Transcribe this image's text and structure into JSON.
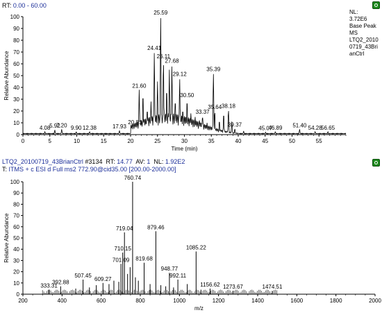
{
  "top_panel": {
    "range_key": "RT:",
    "range_value": "0.00 - 60.00",
    "side_info": [
      "NL:",
      "3.72E6",
      "Base Peak",
      "MS",
      "LTQ2_2010",
      "0719_43Bri",
      "anCtrl"
    ]
  },
  "bottom_panel": {
    "line1": [
      {
        "text": "LTQ2_20100719_43BrianCtrl",
        "color": "#1c2f9a"
      },
      {
        "text": " #3134  RT: ",
        "color": "#000000"
      },
      {
        "text": "14.77",
        "color": "#1c2f9a"
      },
      {
        "text": "  AV: ",
        "color": "#000000"
      },
      {
        "text": "1",
        "color": "#1c2f9a"
      },
      {
        "text": "  NL: ",
        "color": "#000000"
      },
      {
        "text": "1.92E2",
        "color": "#1c2f9a"
      }
    ],
    "line2": [
      {
        "text": "T: ",
        "color": "#000000"
      },
      {
        "text": "ITMS + c ESI d Full ms2 772.90@cid35.00 [200.00-2000.00]",
        "color": "#1c2f9a"
      }
    ]
  },
  "colors": {
    "trace": "#000000",
    "label_link": "#3aa63a",
    "text_blue": "#1c2f9a",
    "button": "#1c8a1c"
  },
  "icons": [
    "restore-pane-icon",
    "restore-pane-icon"
  ],
  "chart_data": [
    {
      "type": "line",
      "xlabel": "Time (min)",
      "ylabel": "Relative Abundance",
      "xlim": [
        0,
        60
      ],
      "ylim": [
        0,
        100
      ],
      "x_ticks": [
        0,
        5,
        10,
        15,
        20,
        25,
        30,
        35,
        40,
        45,
        50,
        55
      ],
      "y_ticks": [
        0,
        10,
        20,
        30,
        40,
        50,
        60,
        70,
        80,
        90,
        100
      ],
      "peaks": [
        {
          "x": 4.08,
          "y": 2.5,
          "label": "4.08"
        },
        {
          "x": 5.92,
          "y": 4,
          "label": "5.92"
        },
        {
          "x": 7.2,
          "y": 4.5,
          "label": "7.20"
        },
        {
          "x": 9.9,
          "y": 2.5,
          "label": "9.90"
        },
        {
          "x": 12.38,
          "y": 2.5,
          "label": "12.38"
        },
        {
          "x": 17.93,
          "y": 3.5,
          "label": "17.93"
        },
        {
          "x": 20.81,
          "y": 7,
          "label": "20.81"
        },
        {
          "x": 21.6,
          "y": 38,
          "label": "21.60"
        },
        {
          "x": 22.3,
          "y": 35
        },
        {
          "x": 23.1,
          "y": 22
        },
        {
          "x": 23.8,
          "y": 28
        },
        {
          "x": 24.41,
          "y": 70,
          "label": "24.41"
        },
        {
          "x": 25.0,
          "y": 45
        },
        {
          "x": 25.59,
          "y": 100,
          "label": "25.59"
        },
        {
          "x": 26.11,
          "y": 63,
          "label": "26.11"
        },
        {
          "x": 26.7,
          "y": 40
        },
        {
          "x": 27.2,
          "y": 55
        },
        {
          "x": 27.68,
          "y": 59,
          "label": "27.68"
        },
        {
          "x": 28.3,
          "y": 30
        },
        {
          "x": 29.12,
          "y": 48,
          "label": "29.12"
        },
        {
          "x": 29.7,
          "y": 22
        },
        {
          "x": 30.5,
          "y": 30,
          "label": "30.50"
        },
        {
          "x": 31.2,
          "y": 18
        },
        {
          "x": 32.0,
          "y": 15
        },
        {
          "x": 32.8,
          "y": 12
        },
        {
          "x": 33.37,
          "y": 16,
          "label": "33.37"
        },
        {
          "x": 34.2,
          "y": 10
        },
        {
          "x": 35.39,
          "y": 52,
          "label": "35.39"
        },
        {
          "x": 35.64,
          "y": 20,
          "label": "35.64"
        },
        {
          "x": 36.5,
          "y": 12
        },
        {
          "x": 37.3,
          "y": 18
        },
        {
          "x": 38.18,
          "y": 21,
          "label": "38.18"
        },
        {
          "x": 38.8,
          "y": 11
        },
        {
          "x": 39.37,
          "y": 5,
          "label": "39.37"
        },
        {
          "x": 41.0,
          "y": 3
        },
        {
          "x": 45.07,
          "y": 2,
          "label": "45.07"
        },
        {
          "x": 46.89,
          "y": 2.5,
          "label": "46.89"
        },
        {
          "x": 51.4,
          "y": 4.5,
          "label": "51.40"
        },
        {
          "x": 54.28,
          "y": 2.5,
          "label": "54.28"
        },
        {
          "x": 56.65,
          "y": 2.5,
          "label": "56.65"
        }
      ]
    },
    {
      "type": "bar",
      "xlabel": "m/z",
      "ylabel": "Relative Abundance",
      "xlim": [
        200,
        2000
      ],
      "ylim": [
        0,
        100
      ],
      "x_ticks": [
        200,
        400,
        600,
        800,
        1000,
        1200,
        1400,
        1600,
        1800,
        2000
      ],
      "y_ticks": [
        0,
        10,
        20,
        30,
        40,
        50,
        60,
        70,
        80,
        90,
        100
      ],
      "peaks": [
        {
          "x": 333.31,
          "y": 4,
          "label": "333.31"
        },
        {
          "x": 392.88,
          "y": 7,
          "label": "392.88"
        },
        {
          "x": 470,
          "y": 5
        },
        {
          "x": 507.45,
          "y": 13,
          "label": "507.45"
        },
        {
          "x": 540,
          "y": 6
        },
        {
          "x": 575,
          "y": 8
        },
        {
          "x": 609.27,
          "y": 10,
          "label": "609.27"
        },
        {
          "x": 640,
          "y": 9
        },
        {
          "x": 665,
          "y": 12
        },
        {
          "x": 690,
          "y": 11
        },
        {
          "x": 701.09,
          "y": 27,
          "label": "701.09"
        },
        {
          "x": 710.15,
          "y": 37,
          "label": "710.15"
        },
        {
          "x": 719.04,
          "y": 55,
          "label": "719.04"
        },
        {
          "x": 735,
          "y": 18
        },
        {
          "x": 748,
          "y": 24
        },
        {
          "x": 760.74,
          "y": 100,
          "label": "760.74"
        },
        {
          "x": 775,
          "y": 15
        },
        {
          "x": 790,
          "y": 12
        },
        {
          "x": 819.68,
          "y": 28,
          "label": "819.68"
        },
        {
          "x": 850,
          "y": 9
        },
        {
          "x": 879.46,
          "y": 56,
          "label": "879.46"
        },
        {
          "x": 905,
          "y": 8
        },
        {
          "x": 930,
          "y": 7
        },
        {
          "x": 948.77,
          "y": 19,
          "label": "948.77"
        },
        {
          "x": 970,
          "y": 6
        },
        {
          "x": 992.11,
          "y": 13,
          "label": "992.11"
        },
        {
          "x": 1040,
          "y": 9
        },
        {
          "x": 1085.22,
          "y": 38,
          "label": "1085.22"
        },
        {
          "x": 1110,
          "y": 4
        },
        {
          "x": 1156.62,
          "y": 5,
          "label": "1156.62"
        },
        {
          "x": 1273.67,
          "y": 3,
          "label": "1273.67"
        },
        {
          "x": 1474.51,
          "y": 3,
          "label": "1474.51"
        }
      ]
    }
  ]
}
